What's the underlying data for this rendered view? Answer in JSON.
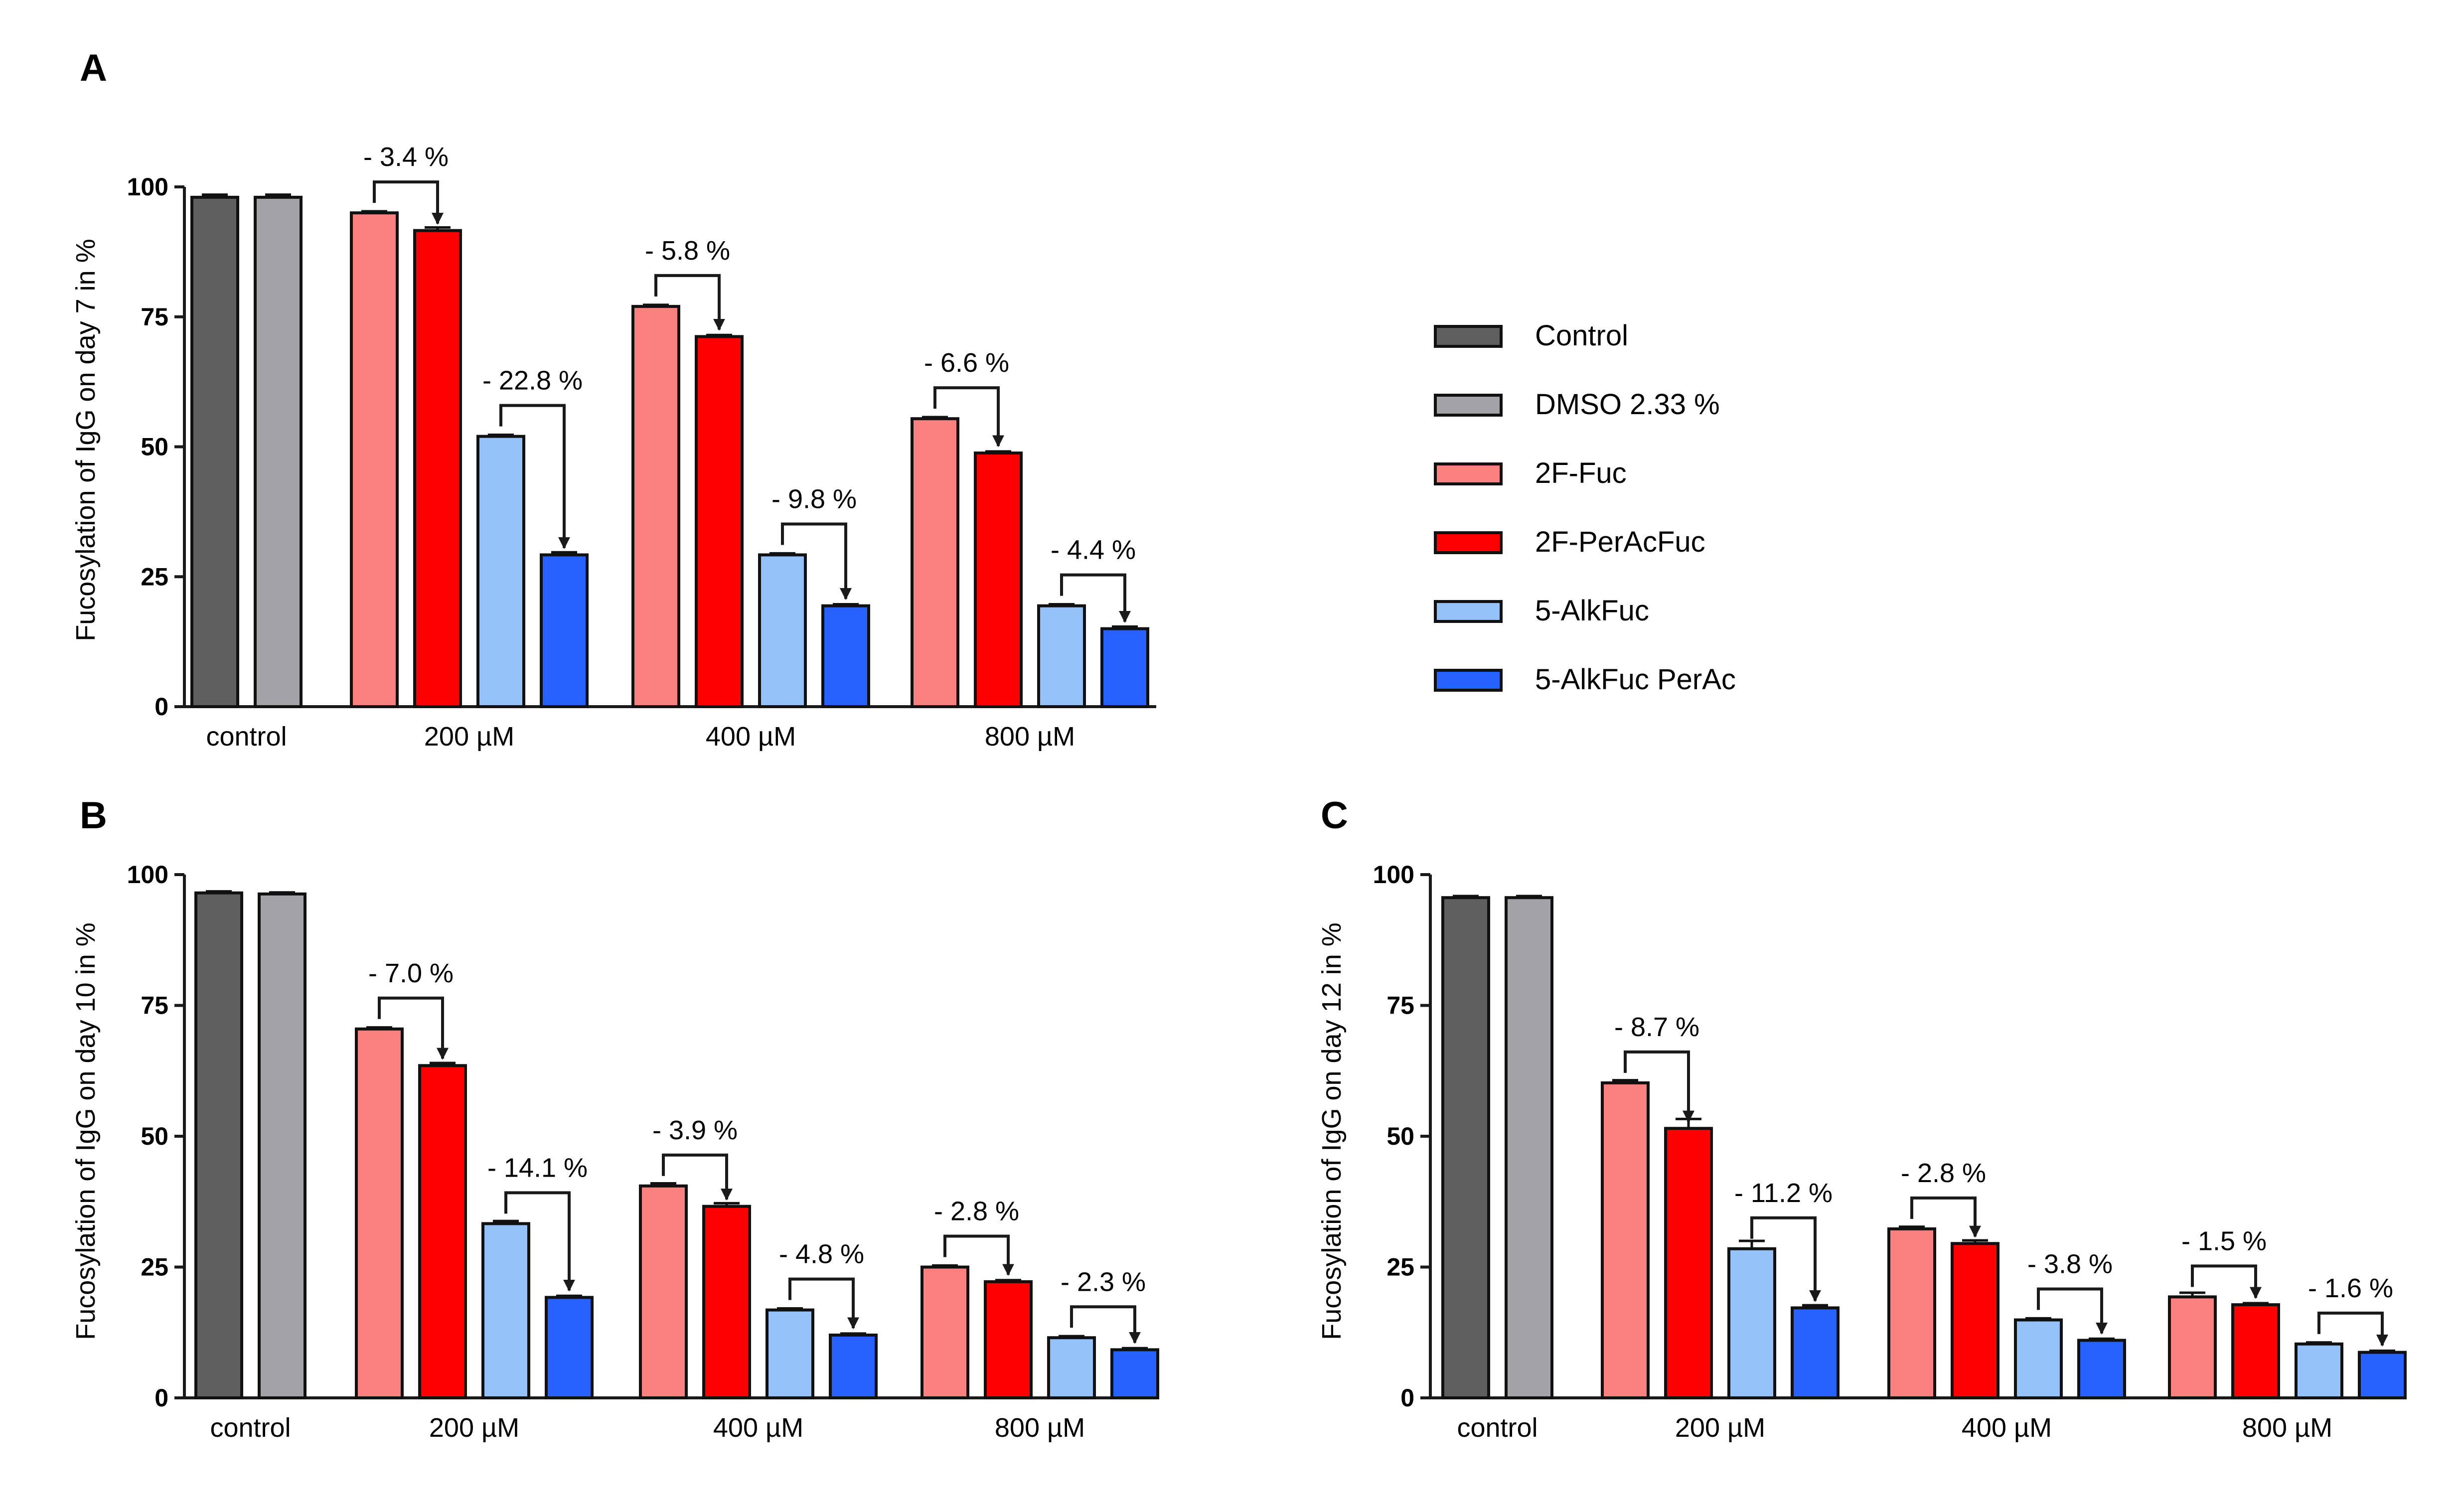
{
  "legend": {
    "placement": "right",
    "items": [
      {
        "label": "Control",
        "color": "#5f5f5f"
      },
      {
        "label": "DMSO 2.33 %",
        "color": "#a2a2a7"
      },
      {
        "label": "2F-Fuc",
        "color": "#fb8080"
      },
      {
        "label": "2F-PerAcFuc",
        "color": "#ff0000"
      },
      {
        "label": "5-AlkFuc",
        "color": "#94c2f8"
      },
      {
        "label": "5-AlkFuc PerAc",
        "color": "#2762ff"
      }
    ]
  },
  "chart_data": [
    {
      "type": "bar",
      "panel_label": "A",
      "ylabel": "Fucosylation of IgG on day 7 in %",
      "ylim": [
        0,
        100
      ],
      "yticks": [
        "0",
        "25",
        "50",
        "75",
        "100"
      ],
      "groups": [
        {
          "label": "control",
          "bars": [
            {
              "series": "Control",
              "value": 98,
              "err": 0.5
            },
            {
              "series": "DMSO 2.33 %",
              "value": 98,
              "err": 0.5
            }
          ]
        },
        {
          "label": "200 µM",
          "bars": [
            {
              "series": "2F-Fuc",
              "value": 95,
              "err": 0.3
            },
            {
              "series": "2F-PerAcFuc",
              "value": 91.6,
              "err": 0.6
            },
            {
              "series": "5-AlkFuc",
              "value": 52,
              "err": 0.3
            },
            {
              "series": "5-AlkFuc PerAc",
              "value": 29.2,
              "err": 0.5
            }
          ]
        },
        {
          "label": "400 µM",
          "bars": [
            {
              "series": "2F-Fuc",
              "value": 77,
              "err": 0.3
            },
            {
              "series": "2F-PerAcFuc",
              "value": 71.2,
              "err": 0.3
            },
            {
              "series": "5-AlkFuc",
              "value": 29.2,
              "err": 0.3
            },
            {
              "series": "5-AlkFuc PerAc",
              "value": 19.4,
              "err": 0.3
            }
          ]
        },
        {
          "label": "800 µM",
          "bars": [
            {
              "series": "2F-Fuc",
              "value": 55.4,
              "err": 0.3
            },
            {
              "series": "2F-PerAcFuc",
              "value": 48.8,
              "err": 0.3
            },
            {
              "series": "5-AlkFuc",
              "value": 19.4,
              "err": 0.3
            },
            {
              "series": "5-AlkFuc PerAc",
              "value": 15,
              "err": 0.4
            }
          ]
        }
      ],
      "annotations": [
        {
          "text": "- 3.4 %",
          "group": 1,
          "from": 0,
          "to": 1
        },
        {
          "text": "- 22.8 %",
          "group": 1,
          "from": 2,
          "to": 3
        },
        {
          "text": "- 5.8 %",
          "group": 2,
          "from": 0,
          "to": 1
        },
        {
          "text": "- 9.8 %",
          "group": 2,
          "from": 2,
          "to": 3
        },
        {
          "text": "- 6.6 %",
          "group": 3,
          "from": 0,
          "to": 1
        },
        {
          "text": "- 4.4 %",
          "group": 3,
          "from": 2,
          "to": 3
        }
      ]
    },
    {
      "type": "bar",
      "panel_label": "B",
      "ylabel": "Fucosylation of IgG on day 10 in %",
      "ylim": [
        0,
        100
      ],
      "yticks": [
        "0",
        "25",
        "50",
        "75",
        "100"
      ],
      "groups": [
        {
          "label": "control",
          "bars": [
            {
              "series": "Control",
              "value": 96.5,
              "err": 0.3
            },
            {
              "series": "DMSO 2.33 %",
              "value": 96.3,
              "err": 0.3
            }
          ]
        },
        {
          "label": "200 µM",
          "bars": [
            {
              "series": "2F-Fuc",
              "value": 70.5,
              "err": 0.3
            },
            {
              "series": "2F-PerAcFuc",
              "value": 63.5,
              "err": 0.5
            },
            {
              "series": "5-AlkFuc",
              "value": 33.3,
              "err": 0.5
            },
            {
              "series": "5-AlkFuc PerAc",
              "value": 19.2,
              "err": 0.3
            }
          ]
        },
        {
          "label": "400 µM",
          "bars": [
            {
              "series": "2F-Fuc",
              "value": 40.5,
              "err": 0.5
            },
            {
              "series": "2F-PerAcFuc",
              "value": 36.6,
              "err": 0.6
            },
            {
              "series": "5-AlkFuc",
              "value": 16.8,
              "err": 0.3
            },
            {
              "series": "5-AlkFuc PerAc",
              "value": 12,
              "err": 0.3
            }
          ]
        },
        {
          "label": "800 µM",
          "bars": [
            {
              "series": "2F-Fuc",
              "value": 25,
              "err": 0.3
            },
            {
              "series": "2F-PerAcFuc",
              "value": 22.2,
              "err": 0.3
            },
            {
              "series": "5-AlkFuc",
              "value": 11.5,
              "err": 0.3
            },
            {
              "series": "5-AlkFuc PerAc",
              "value": 9.2,
              "err": 0.3
            }
          ]
        }
      ],
      "annotations": [
        {
          "text": "- 7.0 %",
          "group": 1,
          "from": 0,
          "to": 1
        },
        {
          "text": "- 14.1 %",
          "group": 1,
          "from": 2,
          "to": 3
        },
        {
          "text": "- 3.9 %",
          "group": 2,
          "from": 0,
          "to": 1
        },
        {
          "text": "- 4.8 %",
          "group": 2,
          "from": 2,
          "to": 3
        },
        {
          "text": "- 2.8 %",
          "group": 3,
          "from": 0,
          "to": 1
        },
        {
          "text": "- 2.3 %",
          "group": 3,
          "from": 2,
          "to": 3
        }
      ]
    },
    {
      "type": "bar",
      "panel_label": "C",
      "ylabel": "Fucosylation of IgG on day 12 in %",
      "ylim": [
        0,
        100
      ],
      "yticks": [
        "0",
        "25",
        "50",
        "75",
        "100"
      ],
      "groups": [
        {
          "label": "control",
          "bars": [
            {
              "series": "Control",
              "value": 95.6,
              "err": 0.3
            },
            {
              "series": "DMSO 2.33 %",
              "value": 95.6,
              "err": 0.3
            }
          ]
        },
        {
          "label": "200 µM",
          "bars": [
            {
              "series": "2F-Fuc",
              "value": 60.2,
              "err": 0.5
            },
            {
              "series": "2F-PerAcFuc",
              "value": 51.5,
              "err": 1.8
            },
            {
              "series": "5-AlkFuc",
              "value": 28.5,
              "err": 1.5
            },
            {
              "series": "5-AlkFuc PerAc",
              "value": 17.2,
              "err": 0.5
            }
          ]
        },
        {
          "label": "400 µM",
          "bars": [
            {
              "series": "2F-Fuc",
              "value": 32.3,
              "err": 0.4
            },
            {
              "series": "2F-PerAcFuc",
              "value": 29.5,
              "err": 0.6
            },
            {
              "series": "5-AlkFuc",
              "value": 14.9,
              "err": 0.3
            },
            {
              "series": "5-AlkFuc PerAc",
              "value": 11,
              "err": 0.3
            }
          ]
        },
        {
          "label": "800 µM",
          "bars": [
            {
              "series": "2F-Fuc",
              "value": 19.3,
              "err": 0.8
            },
            {
              "series": "2F-PerAcFuc",
              "value": 17.8,
              "err": 0.3
            },
            {
              "series": "5-AlkFuc",
              "value": 10.3,
              "err": 0.3
            },
            {
              "series": "5-AlkFuc PerAc",
              "value": 8.7,
              "err": 0.3
            }
          ]
        }
      ],
      "annotations": [
        {
          "text": "- 8.7 %",
          "group": 1,
          "from": 0,
          "to": 1
        },
        {
          "text": "- 11.2 %",
          "group": 1,
          "from": 2,
          "to": 3
        },
        {
          "text": "- 2.8 %",
          "group": 2,
          "from": 0,
          "to": 1
        },
        {
          "text": "- 3.8 %",
          "group": 2,
          "from": 2,
          "to": 3
        },
        {
          "text": "- 1.5 %",
          "group": 3,
          "from": 0,
          "to": 1
        },
        {
          "text": "- 1.6 %",
          "group": 3,
          "from": 2,
          "to": 3
        }
      ]
    }
  ]
}
